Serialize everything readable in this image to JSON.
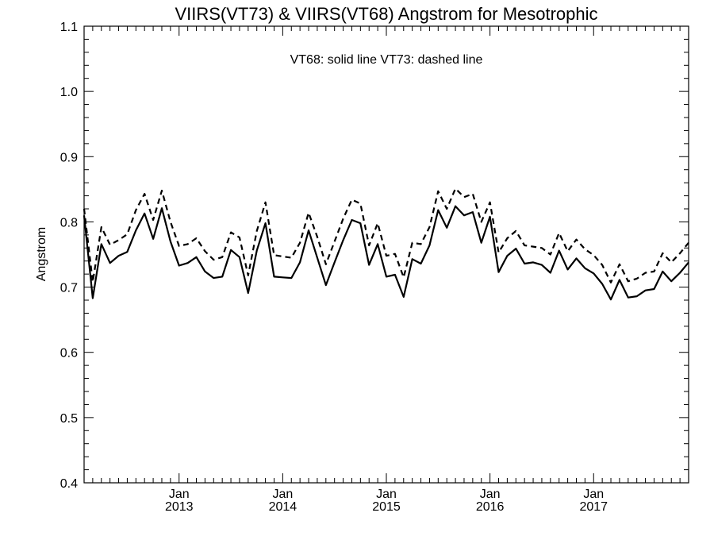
{
  "chart_data": {
    "type": "line",
    "title": "VIIRS(VT73) & VIIRS(VT68)  Angstrom for Mesotrophic",
    "annotation": "VT68: solid line   VT73: dashed line",
    "xlabel": "",
    "ylabel": "Angstrom",
    "ylim": [
      0.4,
      1.1
    ],
    "y_ticks": [
      0.4,
      0.5,
      0.6,
      0.7,
      0.8,
      0.9,
      1.0,
      1.1
    ],
    "y_tick_labels": [
      "0.4",
      "0.5",
      "0.6",
      "0.7",
      "0.8",
      "0.9",
      "1.0",
      "1.1"
    ],
    "x_axis_time": {
      "start_year": 2012,
      "start_month": 2,
      "end_year": 2017,
      "end_month": 12
    },
    "x_major_ticks": [
      {
        "year": 2013,
        "month": 1,
        "label_top": "Jan",
        "label_bottom": "2013"
      },
      {
        "year": 2014,
        "month": 1,
        "label_top": "Jan",
        "label_bottom": "2014"
      },
      {
        "year": 2015,
        "month": 1,
        "label_top": "Jan",
        "label_bottom": "2015"
      },
      {
        "year": 2016,
        "month": 1,
        "label_top": "Jan",
        "label_bottom": "2016"
      },
      {
        "year": 2017,
        "month": 1,
        "label_top": "Jan",
        "label_bottom": "2017"
      }
    ],
    "grid": false,
    "legend": "none",
    "x": [
      "2012-02",
      "2012-03",
      "2012-04",
      "2012-05",
      "2012-06",
      "2012-07",
      "2012-08",
      "2012-09",
      "2012-10",
      "2012-11",
      "2012-12",
      "2013-01",
      "2013-02",
      "2013-03",
      "2013-04",
      "2013-05",
      "2013-06",
      "2013-07",
      "2013-08",
      "2013-09",
      "2013-10",
      "2013-11",
      "2013-12",
      "2014-01",
      "2014-02",
      "2014-03",
      "2014-04",
      "2014-05",
      "2014-06",
      "2014-07",
      "2014-08",
      "2014-09",
      "2014-10",
      "2014-11",
      "2014-12",
      "2015-01",
      "2015-02",
      "2015-03",
      "2015-04",
      "2015-05",
      "2015-06",
      "2015-07",
      "2015-08",
      "2015-09",
      "2015-10",
      "2015-11",
      "2015-12",
      "2016-01",
      "2016-02",
      "2016-03",
      "2016-04",
      "2016-05",
      "2016-06",
      "2016-07",
      "2016-08",
      "2016-09",
      "2016-10",
      "2016-11",
      "2016-12",
      "2017-01",
      "2017-02",
      "2017-03",
      "2017-04",
      "2017-05",
      "2017-06",
      "2017-07",
      "2017-08",
      "2017-09",
      "2017-10",
      "2017-11",
      "2017-12"
    ],
    "series": [
      {
        "name": "VT68",
        "style": "solid",
        "values": [
          0.81,
          0.683,
          0.766,
          0.737,
          0.748,
          0.754,
          0.787,
          0.813,
          0.774,
          0.821,
          0.77,
          0.733,
          0.737,
          0.746,
          0.724,
          0.714,
          0.716,
          0.757,
          0.746,
          0.691,
          0.756,
          0.798,
          0.716,
          0.715,
          0.714,
          0.738,
          0.787,
          0.745,
          0.703,
          0.738,
          0.772,
          0.803,
          0.798,
          0.734,
          0.766,
          0.716,
          0.719,
          0.685,
          0.743,
          0.736,
          0.764,
          0.818,
          0.791,
          0.824,
          0.81,
          0.815,
          0.768,
          0.808,
          0.723,
          0.748,
          0.759,
          0.736,
          0.738,
          0.734,
          0.722,
          0.756,
          0.727,
          0.744,
          0.729,
          0.721,
          0.705,
          0.681,
          0.711,
          0.684,
          0.686,
          0.695,
          0.697,
          0.724,
          0.709,
          0.722,
          0.738
        ]
      },
      {
        "name": "VT73",
        "style": "dashed",
        "values": [
          0.82,
          0.708,
          0.792,
          0.765,
          0.772,
          0.781,
          0.818,
          0.843,
          0.803,
          0.848,
          0.8,
          0.763,
          0.766,
          0.775,
          0.755,
          0.742,
          0.746,
          0.784,
          0.776,
          0.718,
          0.786,
          0.83,
          0.749,
          0.747,
          0.745,
          0.768,
          0.814,
          0.777,
          0.735,
          0.77,
          0.805,
          0.834,
          0.828,
          0.764,
          0.798,
          0.748,
          0.751,
          0.715,
          0.768,
          0.766,
          0.792,
          0.847,
          0.82,
          0.851,
          0.838,
          0.843,
          0.8,
          0.83,
          0.753,
          0.775,
          0.786,
          0.764,
          0.762,
          0.76,
          0.75,
          0.783,
          0.755,
          0.773,
          0.758,
          0.749,
          0.734,
          0.707,
          0.735,
          0.709,
          0.713,
          0.722,
          0.724,
          0.752,
          0.738,
          0.752,
          0.768
        ]
      }
    ]
  }
}
